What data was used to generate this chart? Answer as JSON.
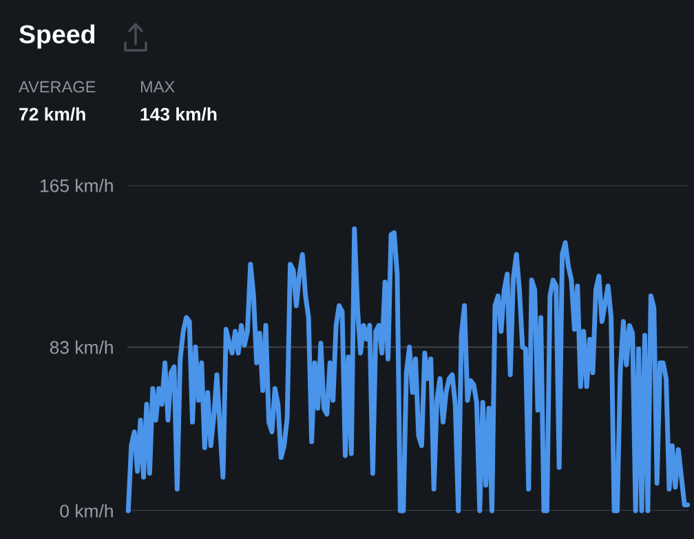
{
  "chart_data": {
    "type": "line",
    "title": "Speed",
    "annotations": [
      "AVERAGE",
      "72 km/h",
      "MAX",
      "143 km/h"
    ],
    "categories": [
      null,
      null,
      null,
      null,
      null,
      null,
      null,
      null,
      null,
      null,
      null,
      null,
      null,
      null,
      null,
      null,
      null,
      null,
      null,
      null,
      null,
      null,
      null,
      null,
      null,
      null,
      null,
      null,
      null,
      null,
      null,
      null,
      null,
      null,
      null,
      null,
      null,
      null,
      null,
      null,
      null,
      null,
      null,
      null,
      null,
      null,
      null,
      null,
      null,
      null,
      null,
      null,
      null,
      null,
      null,
      null,
      null,
      null,
      null,
      null,
      null,
      null,
      null,
      null,
      null,
      null,
      null,
      null,
      null,
      null,
      null,
      null,
      null,
      null,
      null,
      null,
      null,
      null,
      null,
      null,
      null,
      null,
      null,
      null,
      null,
      null,
      null,
      null,
      null,
      null,
      null,
      null,
      null,
      null,
      null,
      null,
      null,
      null,
      null,
      null,
      null,
      null,
      null,
      null,
      null,
      null,
      null,
      null,
      null,
      null,
      null,
      null,
      null,
      null,
      null,
      null,
      null,
      null,
      null,
      null,
      null,
      null,
      null,
      null,
      null,
      null,
      null,
      null,
      null,
      null,
      null,
      null,
      null,
      null,
      null,
      null,
      null,
      null,
      null,
      null,
      null,
      null,
      null,
      null,
      null,
      null,
      null,
      null,
      null,
      null,
      null,
      null,
      null,
      null,
      null,
      null,
      null,
      null,
      null,
      null,
      null,
      null,
      null,
      null,
      null,
      null,
      null,
      null,
      null,
      null,
      null,
      null,
      null,
      null,
      null,
      null,
      null,
      null,
      null,
      null,
      null,
      null,
      null,
      null
    ],
    "series": [
      {
        "color": "#4a94ea",
        "values": [
          0,
          33,
          40,
          20,
          46,
          17,
          54,
          19,
          62,
          46,
          62,
          54,
          75,
          46,
          70,
          73,
          11,
          77,
          91,
          98,
          96,
          45,
          83,
          56,
          75,
          32,
          60,
          33,
          48,
          69,
          42,
          17,
          92,
          85,
          80,
          91,
          80,
          94,
          84,
          91,
          125,
          109,
          75,
          90,
          61,
          94,
          45,
          40,
          62,
          54,
          27,
          33,
          47,
          125,
          122,
          104,
          120,
          130,
          109,
          98,
          35,
          75,
          52,
          85,
          52,
          49,
          75,
          56,
          94,
          104,
          101,
          28,
          78,
          29,
          143,
          103,
          80,
          94,
          87,
          94,
          19,
          91,
          94,
          80,
          116,
          77,
          140,
          141,
          120,
          0,
          0,
          70,
          83,
          60,
          77,
          38,
          33,
          80,
          67,
          77,
          11,
          56,
          67,
          45,
          60,
          67,
          69,
          54,
          0,
          89,
          104,
          56,
          66,
          64,
          55,
          0,
          55,
          13,
          52,
          0,
          104,
          109,
          91,
          112,
          120,
          69,
          118,
          130,
          112,
          83,
          82,
          11,
          117,
          112,
          51,
          98,
          0,
          0,
          109,
          117,
          114,
          22,
          130,
          136,
          124,
          117,
          92,
          114,
          63,
          91,
          63,
          87,
          70,
          112,
          119,
          96,
          105,
          114,
          98,
          0,
          0,
          71,
          96,
          74,
          94,
          90,
          0,
          82,
          0,
          89,
          0,
          109,
          103,
          14,
          75,
          75,
          67,
          11,
          33,
          12,
          31,
          17,
          3,
          3
        ]
      }
    ],
    "ylim": [
      0,
      165
    ],
    "yticks": [
      {
        "value": 0,
        "label": "0 km/h"
      },
      {
        "value": 83,
        "label": "83 km/h"
      },
      {
        "value": 165,
        "label": "165 km/h"
      }
    ],
    "grid": "y",
    "line_style": "solid"
  }
}
